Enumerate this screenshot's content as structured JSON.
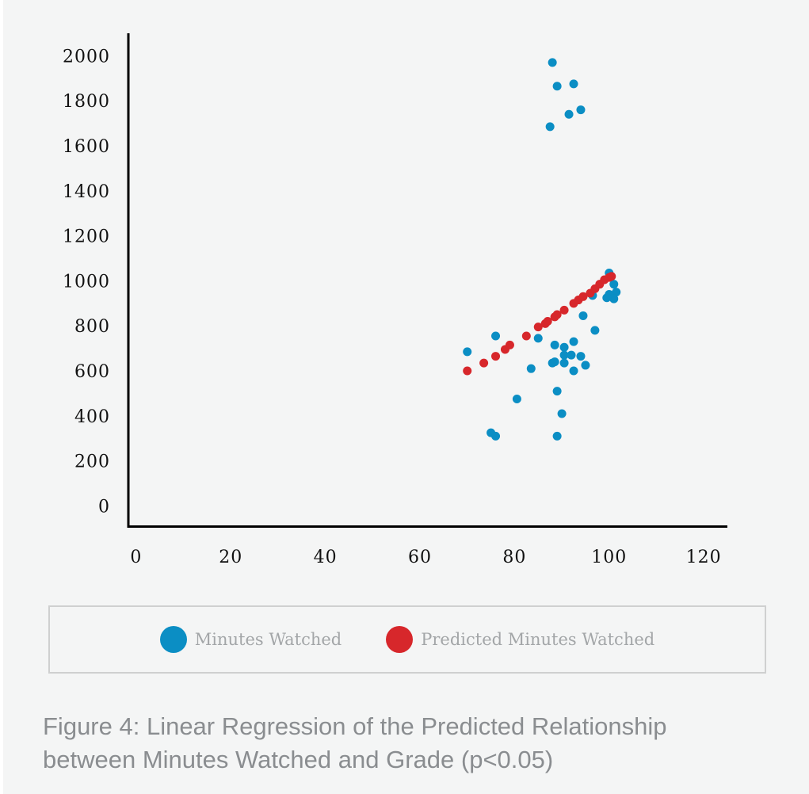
{
  "chart_data": {
    "type": "scatter",
    "xlabel": "",
    "ylabel": "",
    "xlim": [
      -3,
      125
    ],
    "ylim": [
      -90,
      2100
    ],
    "x_ticks": [
      0,
      20,
      40,
      60,
      80,
      100,
      120
    ],
    "y_ticks": [
      0,
      200,
      400,
      600,
      800,
      1000,
      1200,
      1400,
      1600,
      1800,
      2000
    ],
    "legend_position": "bottom",
    "grid": false,
    "series": [
      {
        "name": "Minutes Watched",
        "color": "#0b8ec4",
        "points": [
          [
            88,
            1970
          ],
          [
            89,
            1865
          ],
          [
            92.5,
            1875
          ],
          [
            91.5,
            1740
          ],
          [
            94,
            1760
          ],
          [
            87.5,
            1685
          ],
          [
            100,
            1035
          ],
          [
            101,
            985
          ],
          [
            101.5,
            950
          ],
          [
            100,
            940
          ],
          [
            101,
            920
          ],
          [
            99.5,
            925
          ],
          [
            96.5,
            935
          ],
          [
            94.5,
            845
          ],
          [
            97,
            780
          ],
          [
            70,
            685
          ],
          [
            76,
            755
          ],
          [
            85,
            745
          ],
          [
            88.5,
            715
          ],
          [
            90.5,
            705
          ],
          [
            92.5,
            730
          ],
          [
            90.5,
            670
          ],
          [
            92,
            670
          ],
          [
            94,
            665
          ],
          [
            88,
            635
          ],
          [
            88.5,
            640
          ],
          [
            90.5,
            635
          ],
          [
            83.5,
            610
          ],
          [
            92.5,
            600
          ],
          [
            95,
            625
          ],
          [
            80.5,
            475
          ],
          [
            89,
            510
          ],
          [
            90,
            410
          ],
          [
            75,
            325
          ],
          [
            76,
            310
          ],
          [
            89,
            310
          ]
        ]
      },
      {
        "name": "Predicted Minutes Watched",
        "color": "#d7272b",
        "points": [
          [
            70,
            600
          ],
          [
            73.5,
            635
          ],
          [
            76,
            665
          ],
          [
            78,
            695
          ],
          [
            79,
            715
          ],
          [
            82.5,
            755
          ],
          [
            85,
            795
          ],
          [
            86.5,
            810
          ],
          [
            87,
            820
          ],
          [
            88.5,
            840
          ],
          [
            89,
            850
          ],
          [
            90.5,
            870
          ],
          [
            92.5,
            900
          ],
          [
            93.5,
            915
          ],
          [
            94.5,
            930
          ],
          [
            96,
            945
          ],
          [
            97,
            965
          ],
          [
            98,
            985
          ],
          [
            99,
            1005
          ],
          [
            100,
            1015
          ],
          [
            100.5,
            1020
          ]
        ]
      }
    ]
  },
  "caption": {
    "line1": "Figure 4: Linear Regression of the Predicted Relationship",
    "line2": "between Minutes Watched and Grade (p<0.05)"
  }
}
